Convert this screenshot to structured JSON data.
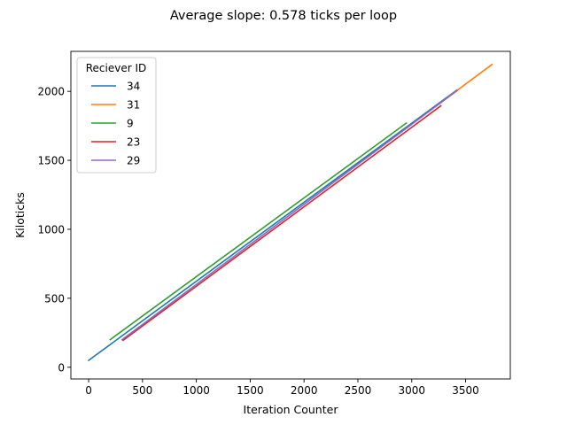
{
  "chart_data": {
    "type": "line",
    "title": "Average slope: 0.578 ticks per loop",
    "xlabel": "Iteration Counter",
    "ylabel": "Kiloticks",
    "xlim": [
      -165,
      3915
    ],
    "ylim": [
      -85,
      2290
    ],
    "xticks": [
      0,
      500,
      1000,
      1500,
      2000,
      2500,
      3000,
      3500
    ],
    "yticks": [
      0,
      500,
      1000,
      1500,
      2000
    ],
    "grid": false,
    "legend": {
      "title": "Reciever ID",
      "placement": "top-left"
    },
    "series": [
      {
        "name": "34",
        "color": "#1f77b4",
        "x": [
          0,
          3420
        ],
        "y": [
          50,
          2010
        ]
      },
      {
        "name": "31",
        "color": "#ff7f0e",
        "x": [
          3340,
          3745
        ],
        "y": [
          1960,
          2195
        ]
      },
      {
        "name": "9",
        "color": "#2ca02c",
        "x": [
          200,
          2950
        ],
        "y": [
          200,
          1770
        ]
      },
      {
        "name": "23",
        "color": "#d62728",
        "x": [
          320,
          3270
        ],
        "y": [
          195,
          1895
        ]
      },
      {
        "name": "29",
        "color": "#9467bd",
        "x": [
          310,
          3420
        ],
        "y": [
          200,
          2005
        ]
      }
    ]
  }
}
